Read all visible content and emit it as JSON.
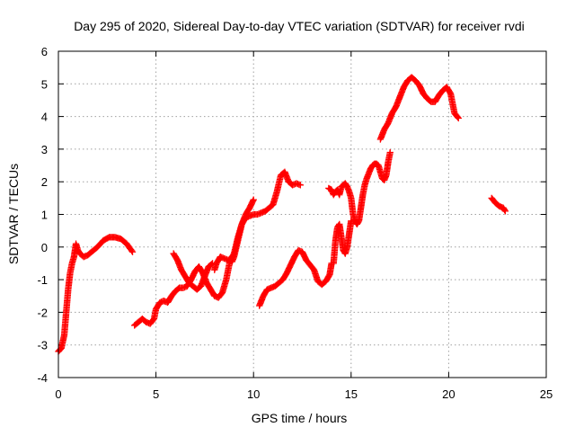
{
  "chart_data": {
    "type": "scatter",
    "title": "Day 295 of 2020, Sidereal Day-to-day VTEC variation (SDTVAR) for receiver rvdi",
    "xlabel": "GPS time / hours",
    "ylabel": "SDTVAR / TECUs",
    "xlim": [
      0,
      25
    ],
    "ylim": [
      -4,
      6
    ],
    "xticks": [
      "0",
      "5",
      "10",
      "15",
      "20",
      "25"
    ],
    "yticks": [
      "-4",
      "-3",
      "-2",
      "-1",
      "0",
      "1",
      "2",
      "3",
      "4",
      "5",
      "6"
    ],
    "grid": true,
    "marker": "plus",
    "colors": {
      "series": "#ff0000"
    },
    "segments": [
      {
        "x": [
          0.0,
          0.15,
          0.3,
          0.4,
          0.5,
          0.6,
          0.7,
          0.8,
          0.9,
          1.0,
          1.1,
          1.3,
          1.5,
          1.7,
          2.0,
          2.3,
          2.6,
          2.9,
          3.2,
          3.5,
          3.8
        ],
        "y": [
          -3.2,
          -3.1,
          -2.7,
          -2.0,
          -1.3,
          -0.8,
          -0.5,
          -0.3,
          0.1,
          -0.1,
          -0.2,
          -0.3,
          -0.25,
          -0.15,
          0.0,
          0.2,
          0.3,
          0.3,
          0.25,
          0.1,
          -0.15
        ]
      },
      {
        "x": [
          3.9,
          4.1,
          4.3,
          4.5,
          4.7,
          4.9,
          5.0,
          5.2,
          5.4,
          5.6,
          5.8,
          6.0,
          6.2,
          6.4,
          6.6,
          6.8,
          7.0,
          7.2,
          7.4,
          7.6,
          7.8,
          8.0,
          8.2,
          8.4,
          8.6,
          8.8,
          9.0,
          9.2,
          9.4,
          9.6,
          9.8,
          10.0,
          10.2,
          10.4,
          10.6,
          10.8,
          11.0,
          11.2,
          11.4,
          11.6,
          11.8,
          12.0,
          12.2,
          12.4
        ],
        "y": [
          -2.4,
          -2.3,
          -2.2,
          -2.3,
          -2.35,
          -2.2,
          -1.9,
          -1.7,
          -1.65,
          -1.7,
          -1.5,
          -1.35,
          -1.25,
          -1.25,
          -1.2,
          -1.0,
          -0.75,
          -0.6,
          -0.8,
          -1.1,
          -1.3,
          -1.5,
          -1.55,
          -1.4,
          -1.0,
          -0.4,
          -0.2,
          0.3,
          0.7,
          0.9,
          0.95,
          1.0,
          1.0,
          1.05,
          1.1,
          1.2,
          1.3,
          1.7,
          2.2,
          2.3,
          2.0,
          1.9,
          1.95,
          1.9
        ]
      },
      {
        "x": [
          5.9,
          6.1,
          6.3,
          6.5,
          6.7,
          6.9,
          7.1,
          7.3,
          7.5,
          7.7,
          7.9
        ],
        "y": [
          -0.2,
          -0.4,
          -0.7,
          -0.9,
          -1.1,
          -1.2,
          -1.3,
          -1.2,
          -0.9,
          -0.6,
          -0.5
        ]
      },
      {
        "x": [
          8.0,
          8.1,
          8.3,
          8.5,
          8.7,
          8.9,
          9.0,
          9.2,
          9.4,
          9.6,
          9.8,
          10.0
        ],
        "y": [
          -0.7,
          -0.5,
          -0.3,
          -0.35,
          -0.4,
          -0.45,
          -0.3,
          0.2,
          0.7,
          1.0,
          1.2,
          1.45
        ]
      },
      {
        "x": [
          10.3,
          10.5,
          10.7,
          10.9,
          11.1,
          11.3,
          11.5,
          11.7,
          11.9,
          12.1,
          12.3,
          12.5,
          12.7,
          12.9,
          13.1,
          13.3,
          13.5,
          13.7,
          13.9,
          14.0
        ],
        "y": [
          -1.8,
          -1.5,
          -1.3,
          -1.25,
          -1.2,
          -1.1,
          -1.0,
          -0.8,
          -0.55,
          -0.3,
          -0.1,
          -0.15,
          -0.4,
          -0.55,
          -0.7,
          -1.05,
          -1.15,
          -1.05,
          -0.85,
          -0.5
        ]
      },
      {
        "x": [
          13.85,
          14.0,
          14.1,
          14.2,
          14.3,
          14.4,
          14.5,
          14.6,
          14.7,
          14.8,
          14.9,
          15.0,
          15.1,
          15.2,
          15.3,
          15.4,
          15.5,
          15.6,
          15.7,
          15.8,
          15.9,
          16.0,
          16.1,
          16.2,
          16.3,
          16.4,
          16.5,
          16.6,
          16.7,
          16.8,
          16.9,
          17.0
        ],
        "y": [
          1.8,
          1.75,
          1.6,
          1.7,
          1.75,
          1.6,
          1.85,
          1.9,
          1.95,
          1.85,
          1.7,
          1.5,
          1.0,
          0.8,
          0.7,
          0.8,
          1.2,
          1.6,
          1.9,
          2.1,
          2.25,
          2.4,
          2.5,
          2.55,
          2.55,
          2.5,
          2.3,
          2.1,
          2.05,
          2.2,
          2.6,
          2.9
        ]
      },
      {
        "x": [
          14.1,
          14.2,
          14.3,
          14.4,
          14.5,
          14.6,
          14.7,
          14.8,
          14.9,
          15.0
        ],
        "y": [
          -0.5,
          0.2,
          0.6,
          0.7,
          0.3,
          -0.1,
          -0.2,
          0.0,
          0.4,
          0.8
        ]
      },
      {
        "x": [
          16.5,
          16.7,
          16.9,
          17.1,
          17.3,
          17.5,
          17.7,
          17.9,
          18.1,
          18.3,
          18.5,
          18.7,
          18.9,
          19.1,
          19.3,
          19.5,
          19.7,
          19.9,
          20.1,
          20.3,
          20.5
        ],
        "y": [
          3.3,
          3.6,
          3.8,
          4.1,
          4.3,
          4.6,
          4.9,
          5.1,
          5.2,
          5.1,
          4.95,
          4.7,
          4.55,
          4.45,
          4.45,
          4.65,
          4.8,
          4.9,
          4.7,
          4.1,
          3.95
        ]
      },
      {
        "x": [
          22.2,
          22.4,
          22.6,
          22.8,
          22.9
        ],
        "y": [
          1.5,
          1.35,
          1.25,
          1.2,
          1.1
        ]
      }
    ]
  }
}
